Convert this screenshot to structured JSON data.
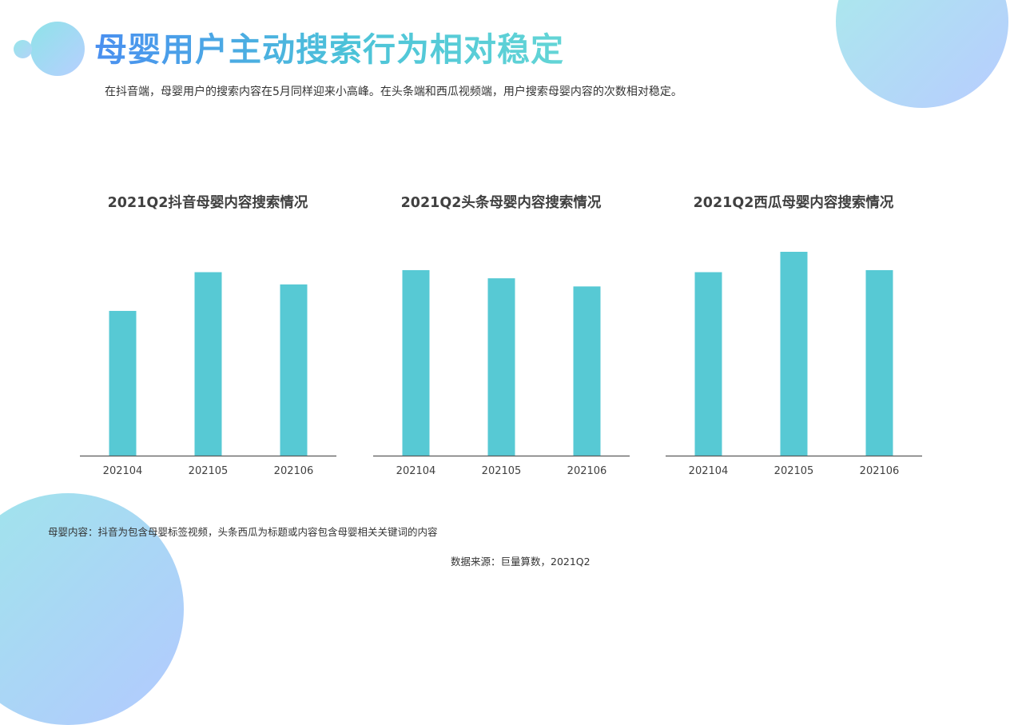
{
  "page": {
    "title": "母婴用户主动搜索行为相对稳定",
    "subtitle": "在抖音端，母婴用户的搜索内容在5月同样迎来小高峰。在头条端和西瓜视频端，用户搜索母婴内容的次数相对稳定。",
    "note": "母婴内容：抖音为包含母婴标签视频，头条西瓜为标题或内容包含母婴相关关键词的内容",
    "source": "数据来源：巨量算数，2021Q2"
  },
  "colors": {
    "bar": "#57c9d4",
    "axis": "#595959",
    "title_gradient_start": "#4a8ff0",
    "title_gradient_end": "#63d5d6"
  },
  "chart_data": [
    {
      "type": "bar",
      "title": "2021Q2抖音母婴内容搜索情况",
      "categories": [
        "202104",
        "202105",
        "202106"
      ],
      "values": [
        71,
        90,
        84
      ],
      "ylim": [
        0,
        100
      ],
      "xlabel": "",
      "ylabel": ""
    },
    {
      "type": "bar",
      "title": "2021Q2头条母婴内容搜索情况",
      "categories": [
        "202104",
        "202105",
        "202106"
      ],
      "values": [
        91,
        87,
        83
      ],
      "ylim": [
        0,
        100
      ],
      "xlabel": "",
      "ylabel": ""
    },
    {
      "type": "bar",
      "title": "2021Q2西瓜母婴内容搜索情况",
      "categories": [
        "202104",
        "202105",
        "202106"
      ],
      "values": [
        90,
        100,
        91
      ],
      "ylim": [
        0,
        100
      ],
      "xlabel": "",
      "ylabel": ""
    }
  ]
}
